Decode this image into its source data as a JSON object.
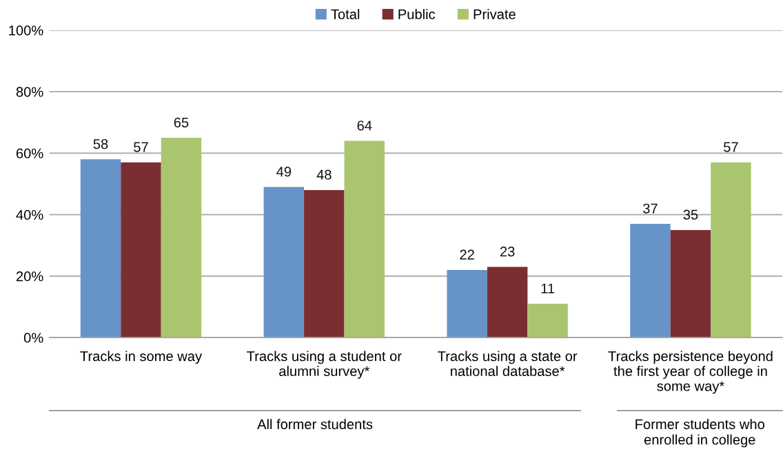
{
  "chart_data": {
    "type": "bar",
    "categories": [
      "Tracks in some way",
      "Tracks using a student or\nalumni survey*",
      "Tracks using a state or\nnational database*",
      "Tracks persistence beyond\nthe first year of college in\nsome way*"
    ],
    "series": [
      {
        "name": "Total",
        "color": "#6694c8",
        "values": [
          58,
          49,
          22,
          37
        ]
      },
      {
        "name": "Public",
        "color": "#7b2e31",
        "values": [
          57,
          48,
          23,
          35
        ]
      },
      {
        "name": "Private",
        "color": "#a9c66f",
        "values": [
          65,
          64,
          11,
          57
        ]
      }
    ],
    "ylim": [
      0,
      100
    ],
    "yticks": [
      {
        "value": 0,
        "label": "0%"
      },
      {
        "value": 20,
        "label": "20%"
      },
      {
        "value": 40,
        "label": "40%"
      },
      {
        "value": 60,
        "label": "60%"
      },
      {
        "value": 80,
        "label": "80%"
      },
      {
        "value": 100,
        "label": "100%"
      }
    ],
    "grid": "y",
    "legend": "top",
    "data_labels": true,
    "annotations": [
      "All former students",
      "Former students who\nenrolled in college"
    ]
  }
}
